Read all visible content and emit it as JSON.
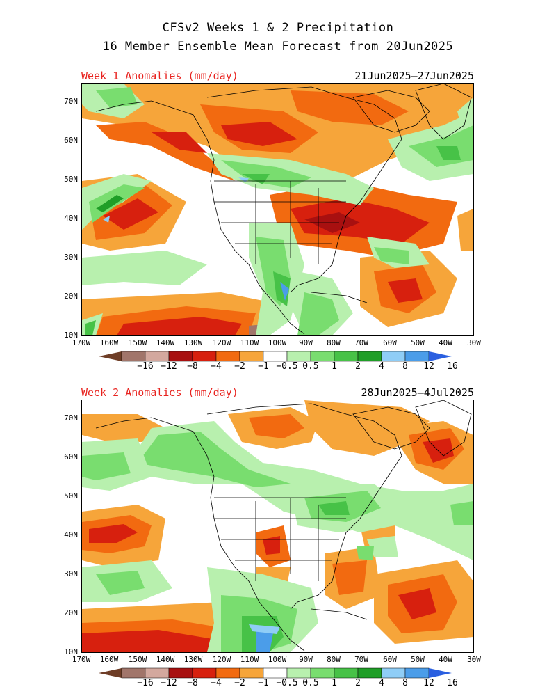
{
  "header": {
    "line1": "CFSv2 Weeks 1 & 2 Precipitation",
    "line2": "16 Member Ensemble Mean Forecast from 20Jun2025"
  },
  "panels": [
    {
      "label": "Week 1 Anomalies (mm/day)",
      "dates": "21Jun2025–27Jun2025"
    },
    {
      "label": "Week 2 Anomalies (mm/day)",
      "dates": "28Jun2025—4Jul2025"
    }
  ],
  "lat_labels": [
    "70N",
    "60N",
    "50N",
    "40N",
    "30N",
    "20N",
    "10N"
  ],
  "lon_labels": [
    "170W",
    "160W",
    "150W",
    "140W",
    "130W",
    "120W",
    "110W",
    "100W",
    "90W",
    "80W",
    "70W",
    "60W",
    "50W",
    "40W",
    "30W"
  ],
  "colorbar": {
    "labels": [
      "−16",
      "−12",
      "−8",
      "−4",
      "−2",
      "−1",
      "−0.5",
      "0.5",
      "1",
      "2",
      "4",
      "8",
      "12",
      "16"
    ],
    "colors": [
      "#6e3d26",
      "#a1756a",
      "#d3a89e",
      "#a81010",
      "#d7200e",
      "#f26a10",
      "#f6a53a",
      "#ffffff",
      "#b8f0ae",
      "#79dd6f",
      "#47c247",
      "#1f9e27",
      "#8fcdf6",
      "#4b9de9",
      "#2a5fe0"
    ]
  },
  "legend_colors": {
    "dry_strong": "#a81010",
    "dry": "#d7200e",
    "dry_moderate": "#f26a10",
    "dry_light": "#f6a53a",
    "wet_light": "#b8f0ae",
    "wet": "#79dd6f",
    "wet_moderate": "#47c247",
    "wet_strong": "#1f9e27",
    "wet_very": "#8fcdf6",
    "wet_extreme": "#4b9de9"
  }
}
